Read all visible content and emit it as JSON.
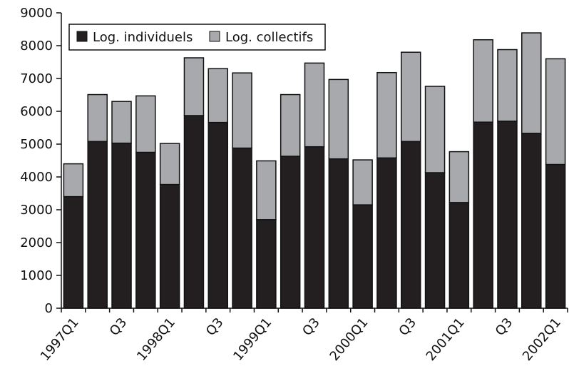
{
  "chart_data": {
    "type": "bar",
    "stacked": true,
    "categories": [
      "1997Q1",
      "Q2",
      "Q3",
      "Q4",
      "1998Q1",
      "Q2",
      "Q3",
      "Q4",
      "1999Q1",
      "Q2",
      "Q3",
      "Q4",
      "2000Q1",
      "Q2",
      "Q3",
      "Q4",
      "2001Q1",
      "Q2",
      "Q3",
      "Q4",
      "2002Q1"
    ],
    "x_tick_labels": [
      "1997Q1",
      "Q3",
      "1998Q1",
      "Q3",
      "1999Q1",
      "Q3",
      "2000Q1",
      "Q3",
      "2001Q1",
      "Q3",
      "2002Q1"
    ],
    "series": [
      {
        "name": "Log. individuels",
        "color": "#231f20",
        "values": [
          3400,
          5080,
          5030,
          4750,
          3770,
          5870,
          5660,
          4880,
          2700,
          4630,
          4920,
          4550,
          3150,
          4580,
          5080,
          4130,
          3220,
          5670,
          5700,
          5330,
          4380
        ]
      },
      {
        "name": "Log. collectifs",
        "color": "#a7a9ac",
        "values": [
          1000,
          1430,
          1270,
          1720,
          1250,
          1760,
          1640,
          2290,
          1790,
          1880,
          2550,
          2420,
          1370,
          2600,
          2720,
          2630,
          1550,
          2510,
          2180,
          3060,
          3220
        ]
      }
    ],
    "ylim": [
      0,
      9000
    ],
    "yticks": [
      0,
      1000,
      2000,
      3000,
      4000,
      5000,
      6000,
      7000,
      8000,
      9000
    ],
    "grid": false,
    "legend_position": "top-left",
    "title": "",
    "xlabel": "",
    "ylabel": ""
  }
}
